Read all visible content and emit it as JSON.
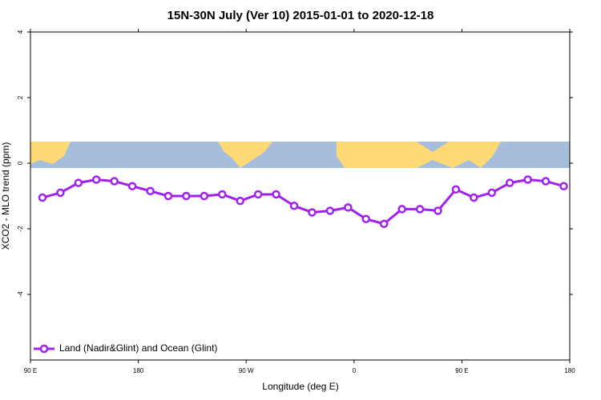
{
  "chart_data": {
    "type": "line",
    "title": "15N-30N July (Ver 10)   2015-01-01 to 2020-12-18",
    "x_label": "Longitude (deg E)",
    "y_label": "XCO2 - MLO trend (ppm)",
    "x": [
      100,
      115,
      130,
      145,
      160,
      175,
      190,
      205,
      220,
      235,
      250,
      265,
      280,
      295,
      310,
      325,
      340,
      355,
      370,
      385,
      400,
      415,
      430,
      445,
      460,
      475,
      490,
      505,
      520,
      535
    ],
    "series": [
      {
        "name": "Land (Nadir&Glint) and Ocean (Glint)",
        "color": "#a020f0",
        "values": [
          -1.05,
          -0.9,
          -0.6,
          -0.5,
          -0.55,
          -0.7,
          -0.85,
          -1.0,
          -1.0,
          -1.0,
          -0.95,
          -1.15,
          -0.95,
          -0.95,
          -1.3,
          -1.5,
          -1.45,
          -1.35,
          -1.7,
          -1.85,
          -1.4,
          -1.4,
          -1.45,
          -0.8,
          -1.05,
          -0.9,
          -0.6,
          -0.5,
          -0.55,
          -0.7
        ]
      }
    ],
    "xlim": [
      90,
      540
    ],
    "xticks": [
      {
        "value": 90,
        "label": "90 E"
      },
      180,
      {
        "value": 270,
        "label": "90 W"
      },
      {
        "value": 360,
        "label": "0"
      },
      {
        "value": 450,
        "label": "90 E"
      },
      {
        "value": 540,
        "label": "180"
      }
    ],
    "ylim": [
      -6,
      4
    ],
    "yticks": [
      -4,
      -2,
      0,
      2,
      4
    ],
    "legend": "bottom-left"
  }
}
